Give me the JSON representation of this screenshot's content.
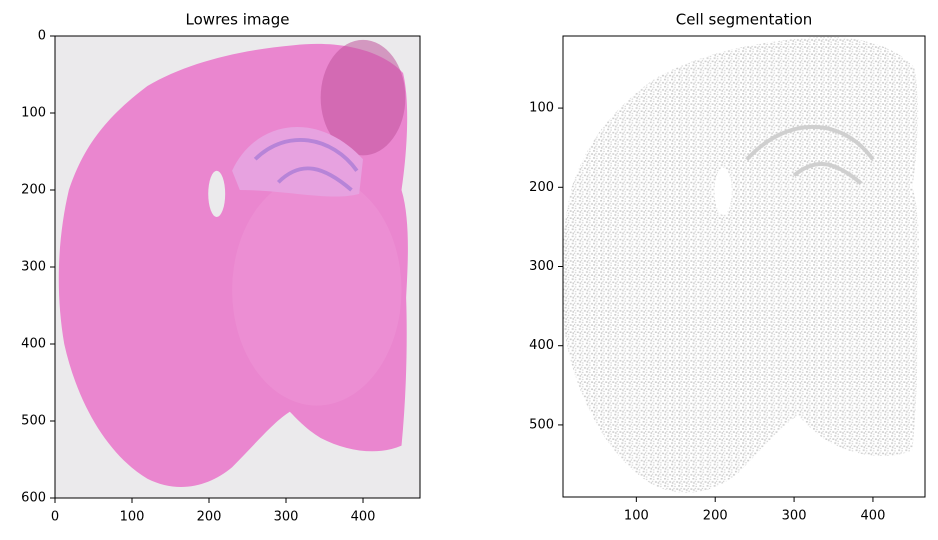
{
  "chart_data": [
    {
      "type": "image",
      "title": "Lowres image",
      "xlim": [
        0,
        474
      ],
      "ylim": [
        600,
        0
      ],
      "xticks": [
        0,
        100,
        200,
        300,
        400
      ],
      "yticks": [
        0,
        100,
        200,
        300,
        400,
        500,
        600
      ]
    },
    {
      "type": "segmentation",
      "title": "Cell segmentation",
      "xlim": [
        7,
        466
      ],
      "ylim": [
        591,
        9
      ],
      "xticks": [
        100,
        200,
        300,
        400
      ],
      "yticks": [
        100,
        200,
        300,
        400,
        500
      ]
    }
  ]
}
